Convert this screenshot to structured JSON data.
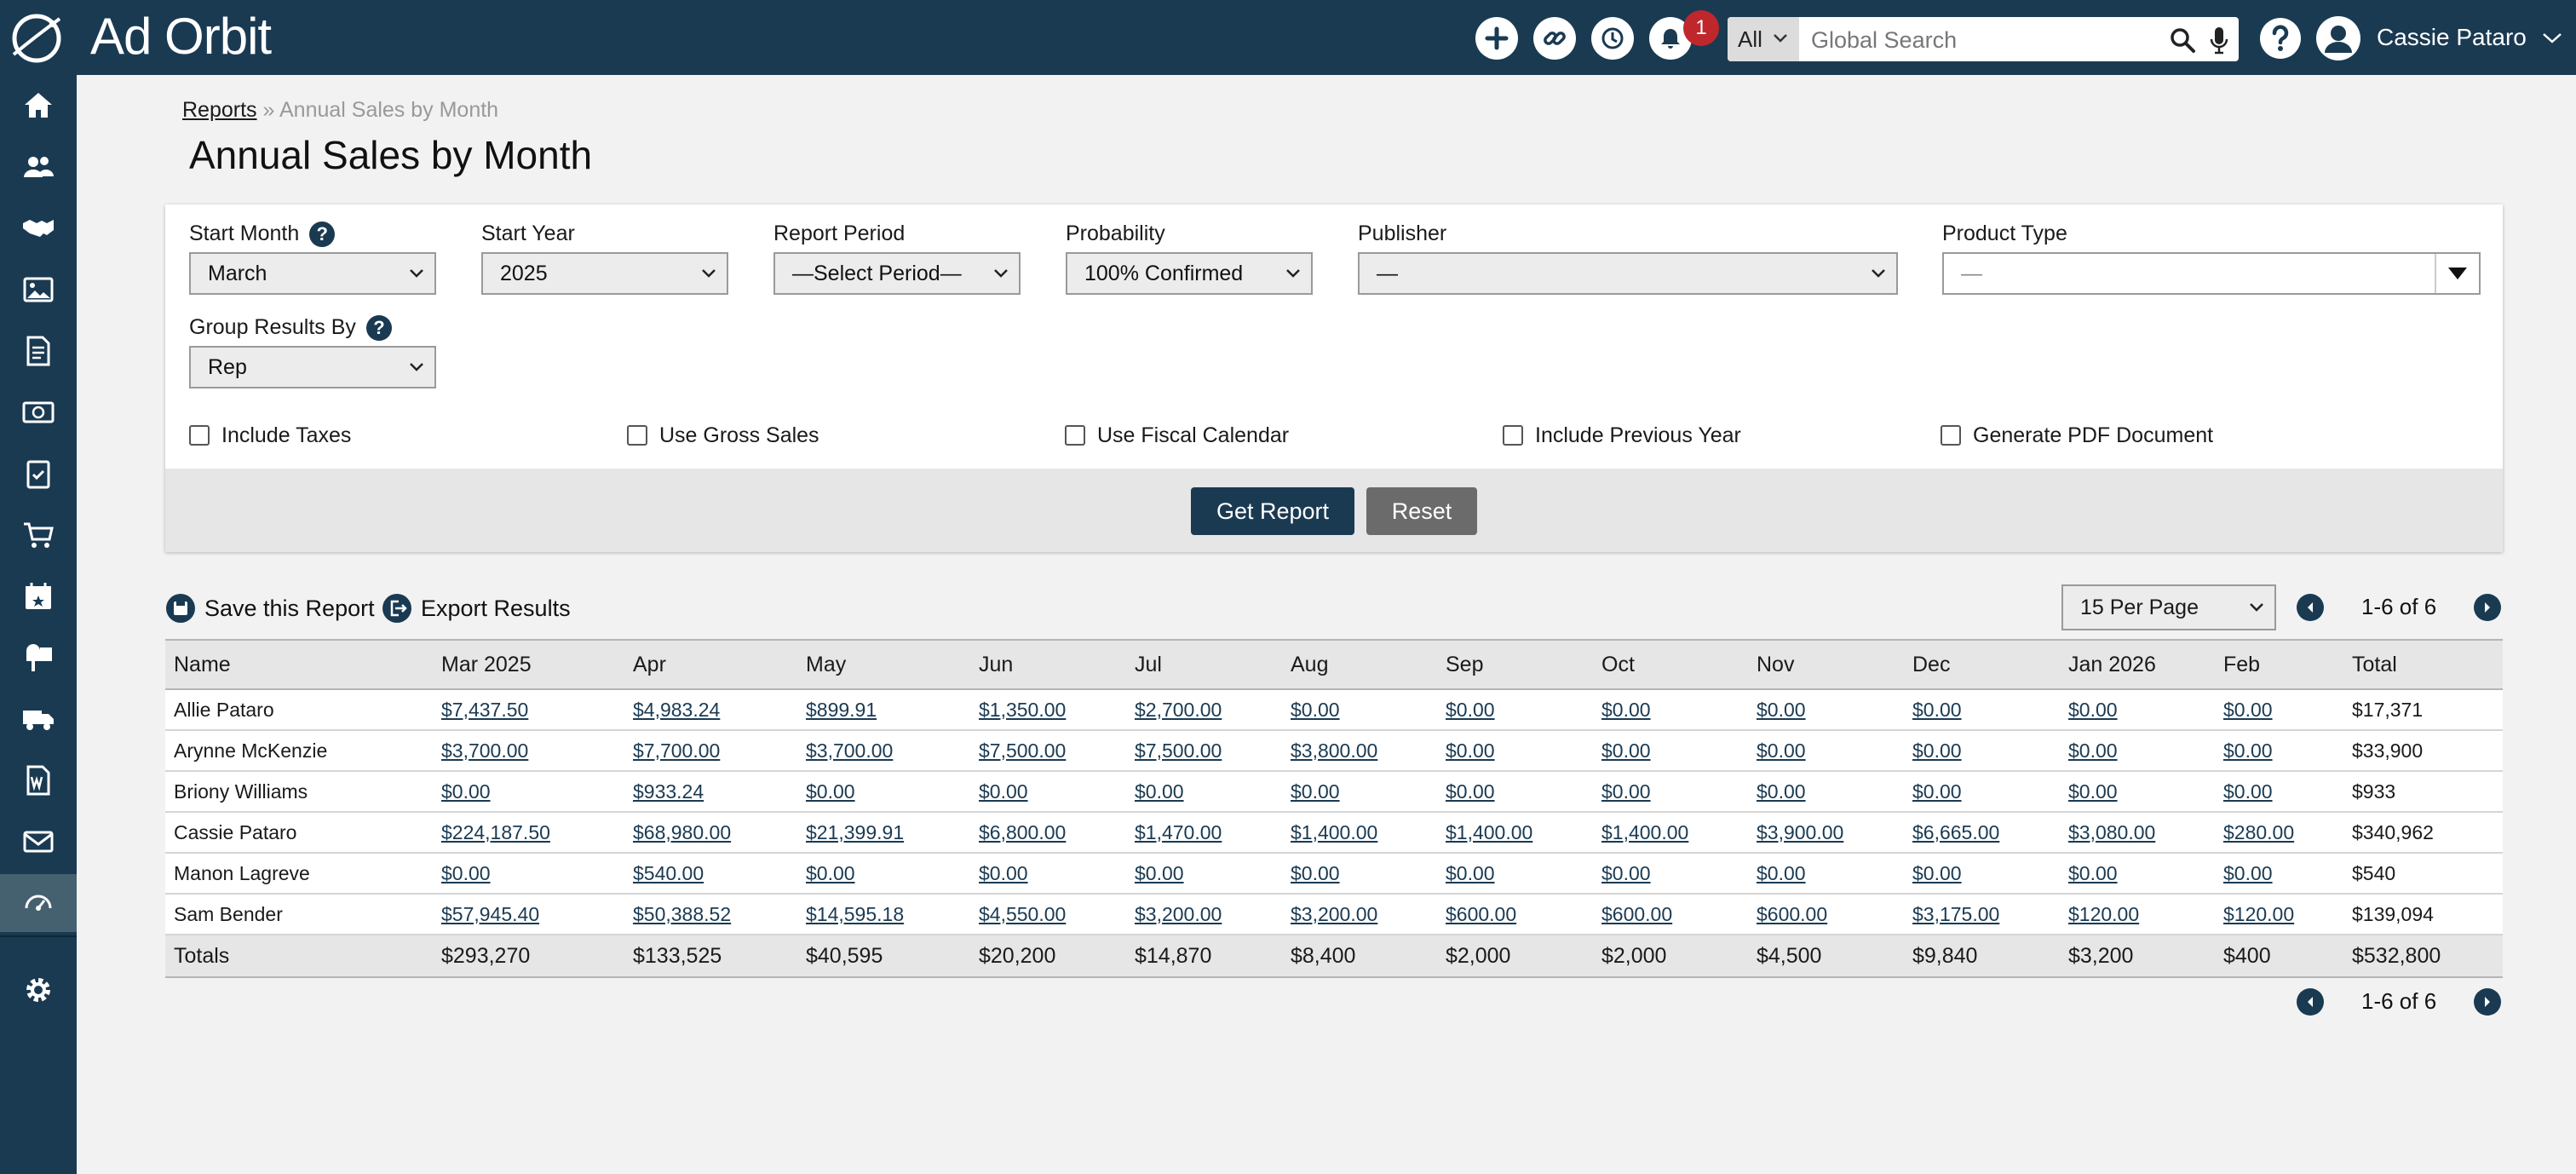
{
  "app": {
    "brand": "Ad Orbit"
  },
  "topbar": {
    "notification_count": "1",
    "search": {
      "scope": "All",
      "placeholder": "Global Search"
    },
    "user_name": "Cassie Pataro"
  },
  "sidebar": {
    "items": [
      "home-icon",
      "contacts-icon",
      "handshake-icon",
      "media-icon",
      "report-doc-icon",
      "finance-icon",
      "checklist-icon",
      "cart-icon",
      "calendar-icon",
      "mailbox-icon",
      "delivery-truck-icon",
      "word-doc-icon",
      "mail-icon",
      "dashboard-icon"
    ],
    "active": "dashboard-icon",
    "bottom": "gear-icon"
  },
  "breadcrumb": {
    "parent": "Reports",
    "separator": "»",
    "current": "Annual Sales by Month"
  },
  "page_title": "Annual Sales by Month",
  "filters": {
    "start_month": {
      "label": "Start Month",
      "value": "March"
    },
    "start_year": {
      "label": "Start Year",
      "value": "2025"
    },
    "report_period": {
      "label": "Report Period",
      "value": "—Select Period—"
    },
    "probability": {
      "label": "Probability",
      "value": "100% Confirmed"
    },
    "publisher": {
      "label": "Publisher",
      "value": "—"
    },
    "product_type": {
      "label": "Product Type",
      "value": "—"
    },
    "group_by": {
      "label": "Group Results By",
      "value": "Rep"
    },
    "help_glyph": "?",
    "checkboxes": {
      "include_taxes": "Include Taxes",
      "use_gross_sales": "Use Gross Sales",
      "use_fiscal_calendar": "Use Fiscal Calendar",
      "include_previous_year": "Include Previous Year",
      "generate_pdf": "Generate PDF Document"
    },
    "get_report_label": "Get Report",
    "reset_label": "Reset"
  },
  "toolbar": {
    "save_label": "Save this Report",
    "export_label": "Export Results",
    "per_page": "15 Per Page",
    "page_info": "1-6 of 6"
  },
  "table": {
    "headers": [
      "Name",
      "Mar 2025",
      "Apr",
      "May",
      "Jun",
      "Jul",
      "Aug",
      "Sep",
      "Oct",
      "Nov",
      "Dec",
      "Jan 2026",
      "Feb",
      "Total"
    ],
    "rows": [
      [
        "Allie Pataro",
        "$7,437.50",
        "$4,983.24",
        "$899.91",
        "$1,350.00",
        "$2,700.00",
        "$0.00",
        "$0.00",
        "$0.00",
        "$0.00",
        "$0.00",
        "$0.00",
        "$0.00",
        "$17,371"
      ],
      [
        "Arynne McKenzie",
        "$3,700.00",
        "$7,700.00",
        "$3,700.00",
        "$7,500.00",
        "$7,500.00",
        "$3,800.00",
        "$0.00",
        "$0.00",
        "$0.00",
        "$0.00",
        "$0.00",
        "$0.00",
        "$33,900"
      ],
      [
        "Briony Williams",
        "$0.00",
        "$933.24",
        "$0.00",
        "$0.00",
        "$0.00",
        "$0.00",
        "$0.00",
        "$0.00",
        "$0.00",
        "$0.00",
        "$0.00",
        "$0.00",
        "$933"
      ],
      [
        "Cassie Pataro",
        "$224,187.50",
        "$68,980.00",
        "$21,399.91",
        "$6,800.00",
        "$1,470.00",
        "$1,400.00",
        "$1,400.00",
        "$1,400.00",
        "$3,900.00",
        "$6,665.00",
        "$3,080.00",
        "$280.00",
        "$340,962"
      ],
      [
        "Manon Lagreve",
        "$0.00",
        "$540.00",
        "$0.00",
        "$0.00",
        "$0.00",
        "$0.00",
        "$0.00",
        "$0.00",
        "$0.00",
        "$0.00",
        "$0.00",
        "$0.00",
        "$540"
      ],
      [
        "Sam Bender",
        "$57,945.40",
        "$50,388.52",
        "$14,595.18",
        "$4,550.00",
        "$3,200.00",
        "$3,200.00",
        "$600.00",
        "$600.00",
        "$600.00",
        "$3,175.00",
        "$120.00",
        "$120.00",
        "$139,094"
      ]
    ],
    "totals": [
      "Totals",
      "$293,270",
      "$133,525",
      "$40,595",
      "$20,200",
      "$14,870",
      "$8,400",
      "$2,000",
      "$2,000",
      "$4,500",
      "$9,840",
      "$3,200",
      "$400",
      "$532,800"
    ]
  },
  "colors": {
    "navy": "#1a3a52",
    "reset_gray": "#6b6b6b",
    "badge_red": "#c0272d"
  }
}
